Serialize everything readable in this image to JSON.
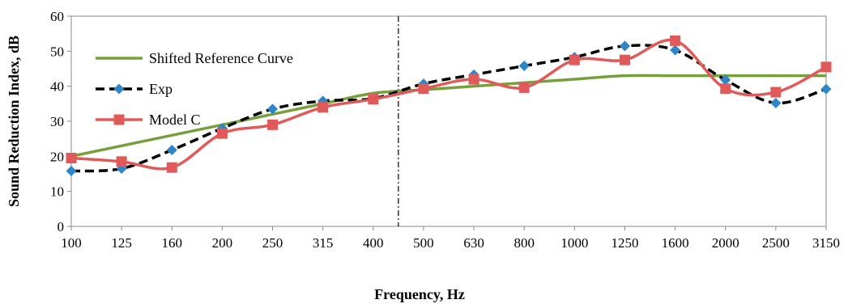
{
  "chart_data": {
    "type": "line",
    "title": "",
    "xlabel": "Frequency, Hz",
    "ylabel": "Sound Reduction Index, dB",
    "categories": [
      "100",
      "125",
      "160",
      "200",
      "250",
      "315",
      "400",
      "500",
      "630",
      "800",
      "1000",
      "1250",
      "1600",
      "2000",
      "2500",
      "3150"
    ],
    "ylim": [
      0,
      60
    ],
    "yticks": [
      0,
      10,
      20,
      30,
      40,
      50,
      60
    ],
    "grid": false,
    "legend_position": "top-left",
    "divider_between": [
      "400",
      "500"
    ],
    "series": [
      {
        "name": "Shifted Reference Curve",
        "color": "#77A03C",
        "style": "solid",
        "marker": "none",
        "values": [
          20,
          23,
          26,
          29,
          32,
          35,
          38,
          39,
          40,
          41,
          42,
          43,
          43,
          43,
          43,
          43
        ]
      },
      {
        "name": "Exp",
        "color": "#000000",
        "marker_color": "#2E86C8",
        "style": "dashed",
        "marker": "diamond",
        "values": [
          15.8,
          16.5,
          21.8,
          28.0,
          33.5,
          35.8,
          36.5,
          40.7,
          43.3,
          45.8,
          48.3,
          51.5,
          50.3,
          41.8,
          35.2,
          39.2
        ]
      },
      {
        "name": "Model C",
        "color": "#E05A5A",
        "style": "solid",
        "marker": "square",
        "values": [
          19.5,
          18.5,
          16.8,
          26.5,
          29.0,
          34.0,
          36.3,
          39.3,
          42.0,
          39.6,
          47.5,
          47.5,
          53.0,
          39.3,
          38.3,
          45.5
        ]
      }
    ]
  }
}
